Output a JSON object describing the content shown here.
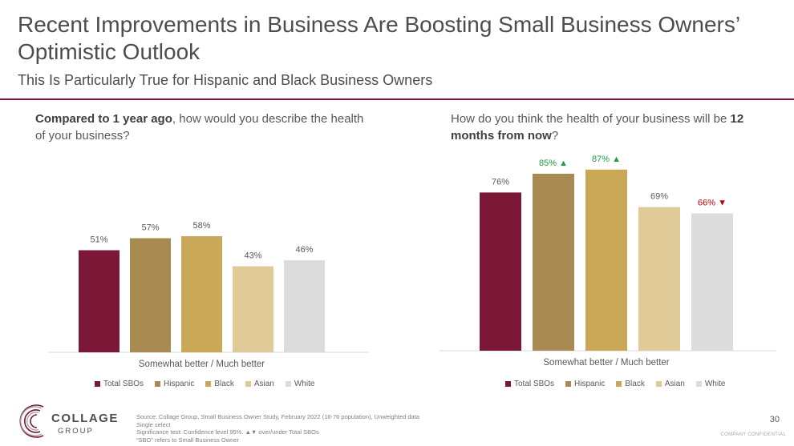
{
  "header": {
    "title": "Recent Improvements in Business Are Boosting Small Business Owners’ Optimistic Outlook",
    "subtitle": "This Is Particularly True for Hispanic and Black Business Owners"
  },
  "questions": {
    "left_bold": "Compared to 1 year ago",
    "left_rest": ", how would you describe the health of your business?",
    "right_pre": "How do you think the health of your business will be ",
    "right_bold": "12 months from now",
    "right_post": "?"
  },
  "colors": {
    "Total SBOs": "#7b1838",
    "Hispanic": "#a88b52",
    "Black": "#c9a857",
    "Asian": "#e0ca97",
    "White": "#dcdcdc",
    "sig_up": "#1e9e3e",
    "sig_down": "#c00000"
  },
  "chart_data": [
    {
      "type": "bar",
      "categories": [
        "Somewhat better / Much better"
      ],
      "series": [
        {
          "name": "Total SBOs",
          "values": [
            51
          ],
          "label": "51%",
          "sig": ""
        },
        {
          "name": "Hispanic",
          "values": [
            57
          ],
          "label": "57%",
          "sig": ""
        },
        {
          "name": "Black",
          "values": [
            58
          ],
          "label": "58%",
          "sig": ""
        },
        {
          "name": "Asian",
          "values": [
            43
          ],
          "label": "43%",
          "sig": ""
        },
        {
          "name": "White",
          "values": [
            46
          ],
          "label": "46%",
          "sig": ""
        }
      ],
      "ylim": [
        0,
        100
      ],
      "legend": "bottom"
    },
    {
      "type": "bar",
      "categories": [
        "Somewhat better / Much better"
      ],
      "series": [
        {
          "name": "Total SBOs",
          "values": [
            76
          ],
          "label": "76%",
          "sig": ""
        },
        {
          "name": "Hispanic",
          "values": [
            85
          ],
          "label": "85%",
          "sig": "up"
        },
        {
          "name": "Black",
          "values": [
            87
          ],
          "label": "87%",
          "sig": "up"
        },
        {
          "name": "Asian",
          "values": [
            69
          ],
          "label": "69%",
          "sig": ""
        },
        {
          "name": "White",
          "values": [
            66
          ],
          "label": "66%",
          "sig": "down"
        }
      ],
      "ylim": [
        0,
        100
      ],
      "legend": "bottom"
    }
  ],
  "footer": {
    "logo_text": "COLLAGE",
    "logo_sub": "GROUP",
    "source": "Source: Collage Group, Small Business Owner Study, February 2022 (18-76 population), Unweighted data",
    "single_select": "Single select",
    "sig_note": "Significance test: Confidence level 95%. ▲▼ over/under Total SBOs",
    "sbo_note": "“SBO” refers to Small Business Owner",
    "page_number": "30",
    "confidential": "COMPANY CONFIDENTIAL"
  }
}
